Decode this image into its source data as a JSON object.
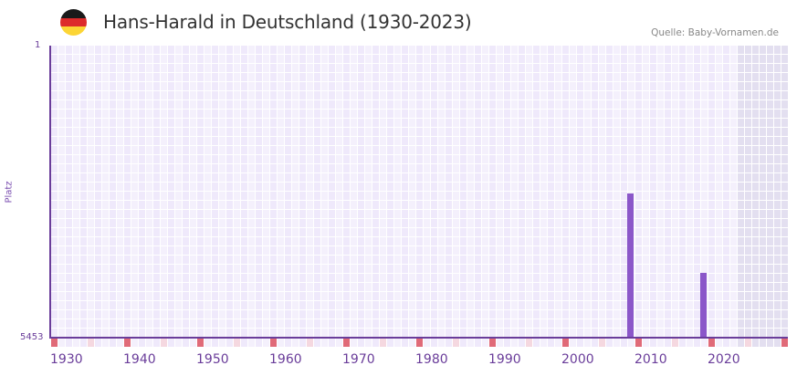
{
  "header": {
    "title": "Hans-Harald in Deutschland (1930-2023)",
    "source": "Quelle: Baby-Vornamen.de",
    "flag_colors": [
      "#1a1a1a",
      "#dd2b2b",
      "#fcd535"
    ]
  },
  "colors": {
    "bar": "#8b57c9",
    "axis": "#6a3d9a",
    "cell_a": "#efe9fb",
    "cell_b": "#f4f0fc",
    "cell_future": "#e3dff0",
    "decade_mark": "#e06a78",
    "half_decade_mark": "#f5d8e0"
  },
  "chart_data": {
    "type": "bar",
    "title": "Hans-Harald in Deutschland (1930-2023)",
    "xlabel": "",
    "ylabel": "Platz",
    "y_axis_inverted": true,
    "ylim": [
      5453,
      1
    ],
    "y_ticks": [
      "1",
      "5453"
    ],
    "x_range": [
      1930,
      2030
    ],
    "x_ticks": [
      "1930",
      "1940",
      "1950",
      "1960",
      "1970",
      "1980",
      "1990",
      "2000",
      "2010",
      "2020"
    ],
    "grid": true,
    "future_shaded_from": 2024,
    "points": [
      {
        "year": 2009,
        "rank": 2760
      },
      {
        "year": 2019,
        "rank": 4240
      }
    ],
    "x": [
      2009,
      2019
    ],
    "values": [
      2760,
      4240
    ]
  },
  "axis": {
    "y_top": "1",
    "y_bottom": "5453",
    "y_title": "Platz"
  }
}
